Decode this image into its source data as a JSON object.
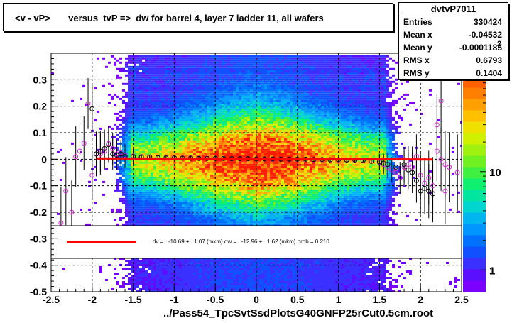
{
  "chart_data": {
    "type": "heatmap",
    "title": "<v - vP>       versus  tvP =>  dw for barrel 4, layer 7 ladder 11, all wafers",
    "xlabel": "../Pass54_TpcSvtSsdPlotsG40GNFP25rCut0.5cm.root",
    "xlim": [
      -2.5,
      2.5
    ],
    "ylim": [
      -0.5,
      0.4
    ],
    "x_ticks": [
      "-2.5",
      "-2",
      "-1.5",
      "-1",
      "-0.5",
      "0",
      "0.5",
      "1",
      "1.5",
      "2",
      "2.5"
    ],
    "y_ticks": [
      "-0.5",
      "-0.4",
      "-0.3",
      "-0.2",
      "-0.1",
      "0",
      "0.1",
      "0.2",
      "0.3"
    ],
    "color_scale": {
      "ticks": [
        "1",
        "10"
      ],
      "exponent_label": "2",
      "log": true
    },
    "grid": true,
    "stats": {
      "name": "dvtvP7011",
      "rows": [
        {
          "label": "Entries",
          "value": "330424"
        },
        {
          "label": "Mean x",
          "value": "-0.04532"
        },
        {
          "label": "Mean y",
          "value": "-0.0001185"
        },
        {
          "label": "RMS x",
          "value": "0.6793"
        },
        {
          "label": "RMS y",
          "value": "0.1404"
        }
      ]
    },
    "fit": {
      "label": "dv =   -10.69 +   1.07 (mkm) dw =   -12.96 +   1.62 (mkm) prob = 0.210",
      "color": "#ff0000",
      "x_range": [
        -1.95,
        2.15
      ],
      "y_start": 0.003,
      "y_end": -0.001
    },
    "profile_black": [
      [
        -1.95,
        0.02
      ],
      [
        -1.9,
        0.03
      ],
      [
        -1.85,
        0.04
      ],
      [
        -1.8,
        0.055
      ],
      [
        -1.75,
        0.02
      ],
      [
        -1.7,
        0.015
      ],
      [
        -1.65,
        0.02
      ],
      [
        -1.6,
        0.01
      ],
      [
        -1.5,
        0.01
      ],
      [
        -1.4,
        0.008
      ],
      [
        -1.3,
        0.008
      ],
      [
        -1.2,
        0.006
      ],
      [
        -1.1,
        0.005
      ],
      [
        -1.0,
        0.005
      ],
      [
        -0.9,
        0.004
      ],
      [
        -0.8,
        0.004
      ],
      [
        -0.7,
        0.003
      ],
      [
        -0.6,
        0.003
      ],
      [
        -0.5,
        0.003
      ],
      [
        -0.4,
        0.003
      ],
      [
        -0.3,
        0.002
      ],
      [
        -0.2,
        0.002
      ],
      [
        -0.1,
        0.002
      ],
      [
        0.0,
        0.001
      ],
      [
        0.1,
        0.001
      ],
      [
        0.2,
        0.001
      ],
      [
        0.3,
        0.0
      ],
      [
        0.4,
        0.0
      ],
      [
        0.5,
        0.0
      ],
      [
        0.6,
        0.0
      ],
      [
        0.7,
        -0.001
      ],
      [
        0.8,
        -0.001
      ],
      [
        0.9,
        -0.002
      ],
      [
        1.0,
        -0.002
      ],
      [
        1.1,
        -0.003
      ],
      [
        1.2,
        -0.003
      ],
      [
        1.3,
        -0.005
      ],
      [
        1.4,
        -0.008
      ],
      [
        1.5,
        -0.01
      ],
      [
        1.55,
        -0.015
      ],
      [
        1.6,
        -0.02
      ],
      [
        1.7,
        -0.03
      ],
      [
        1.8,
        -0.02
      ],
      [
        1.85,
        -0.04
      ],
      [
        1.9,
        -0.05
      ],
      [
        1.95,
        -0.08
      ],
      [
        2.0,
        -0.12
      ],
      [
        2.05,
        -0.11
      ],
      [
        2.1,
        -0.12
      ],
      [
        2.15,
        -0.13
      ],
      [
        -2.0,
        0.19
      ]
    ],
    "profile_magenta": [
      [
        -2.38,
        -0.24
      ],
      [
        -2.32,
        -0.12
      ],
      [
        -2.25,
        -0.2
      ],
      [
        -2.2,
        0.01
      ],
      [
        -2.15,
        0.03
      ],
      [
        -2.1,
        0.06
      ],
      [
        -2.05,
        0.21
      ],
      [
        -2.0,
        -0.06
      ],
      [
        -1.95,
        0.02
      ],
      [
        -1.9,
        0.02
      ],
      [
        -1.85,
        0.03
      ],
      [
        -1.8,
        0.06
      ],
      [
        -1.75,
        0.04
      ],
      [
        -1.7,
        0.02
      ],
      [
        -1.65,
        0.025
      ],
      [
        -1.6,
        0.015
      ],
      [
        -1.5,
        0.012
      ],
      [
        -1.4,
        0.01
      ],
      [
        -1.3,
        0.009
      ],
      [
        -1.2,
        0.008
      ],
      [
        -1.1,
        0.007
      ],
      [
        -1.0,
        0.006
      ],
      [
        -0.9,
        0.005
      ],
      [
        -0.8,
        0.005
      ],
      [
        -0.7,
        0.004
      ],
      [
        -0.6,
        0.004
      ],
      [
        -0.5,
        0.003
      ],
      [
        -0.4,
        0.003
      ],
      [
        -0.3,
        0.002
      ],
      [
        -0.2,
        0.002
      ],
      [
        -0.1,
        0.002
      ],
      [
        0.0,
        0.001
      ],
      [
        0.1,
        0.001
      ],
      [
        0.2,
        0.0
      ],
      [
        0.3,
        0.0
      ],
      [
        0.4,
        0.0
      ],
      [
        0.5,
        -0.001
      ],
      [
        0.6,
        -0.001
      ],
      [
        0.7,
        -0.002
      ],
      [
        0.8,
        -0.002
      ],
      [
        0.9,
        -0.003
      ],
      [
        1.0,
        -0.003
      ],
      [
        1.1,
        -0.004
      ],
      [
        1.2,
        -0.005
      ],
      [
        1.3,
        -0.006
      ],
      [
        1.4,
        -0.008
      ],
      [
        1.5,
        -0.012
      ],
      [
        1.55,
        -0.02
      ],
      [
        1.6,
        -0.03
      ],
      [
        1.65,
        -0.04
      ],
      [
        1.7,
        -0.05
      ],
      [
        1.75,
        -0.07
      ],
      [
        1.8,
        -0.03
      ],
      [
        1.85,
        -0.02
      ],
      [
        1.9,
        -0.03
      ],
      [
        1.95,
        0.01
      ],
      [
        2.0,
        -0.06
      ],
      [
        2.05,
        -0.09
      ],
      [
        2.1,
        -0.07
      ],
      [
        2.15,
        -0.1
      ],
      [
        2.2,
        0.03
      ],
      [
        2.25,
        0.0
      ],
      [
        2.3,
        -0.02
      ],
      [
        2.35,
        -0.03
      ],
      [
        2.45,
        -0.05
      ],
      [
        2.2,
        0.13
      ],
      [
        2.25,
        0.22
      ],
      [
        2.3,
        -0.12
      ]
    ]
  }
}
